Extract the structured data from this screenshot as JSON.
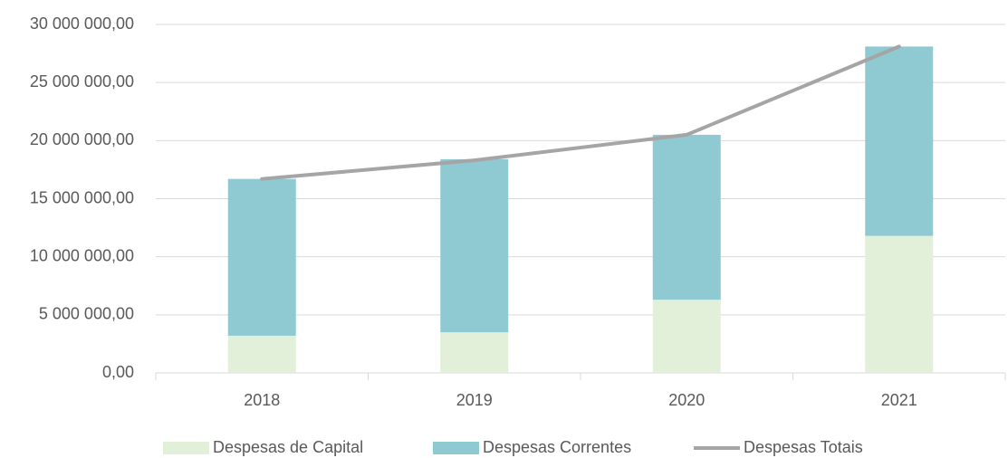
{
  "chart_data": {
    "type": "bar",
    "stacked": true,
    "categories": [
      "2018",
      "2019",
      "2020",
      "2021"
    ],
    "series": [
      {
        "name": "Despesas de Capital",
        "color": "#e2efd9",
        "values": [
          3200000,
          3500000,
          6300000,
          11800000
        ]
      },
      {
        "name": "Despesas Correntes",
        "color": "#8fcad3",
        "values": [
          13500000,
          14900000,
          14200000,
          16300000
        ]
      },
      {
        "name": "Despesas Totais",
        "type": "line",
        "color": "#a5a5a5",
        "values": [
          16700000,
          18300000,
          20500000,
          28100000
        ]
      }
    ],
    "ylim": [
      0,
      30000000
    ],
    "yticks": [
      {
        "value": 0,
        "label": "0,00"
      },
      {
        "value": 5000000,
        "label": "5 000 000,00"
      },
      {
        "value": 10000000,
        "label": "10 000 000,00"
      },
      {
        "value": 15000000,
        "label": "15 000 000,00"
      },
      {
        "value": 20000000,
        "label": "20 000 000,00"
      },
      {
        "value": 25000000,
        "label": "25 000 000,00"
      },
      {
        "value": 30000000,
        "label": "30 000 000,00"
      }
    ],
    "grid": true,
    "legend": "bottom"
  }
}
